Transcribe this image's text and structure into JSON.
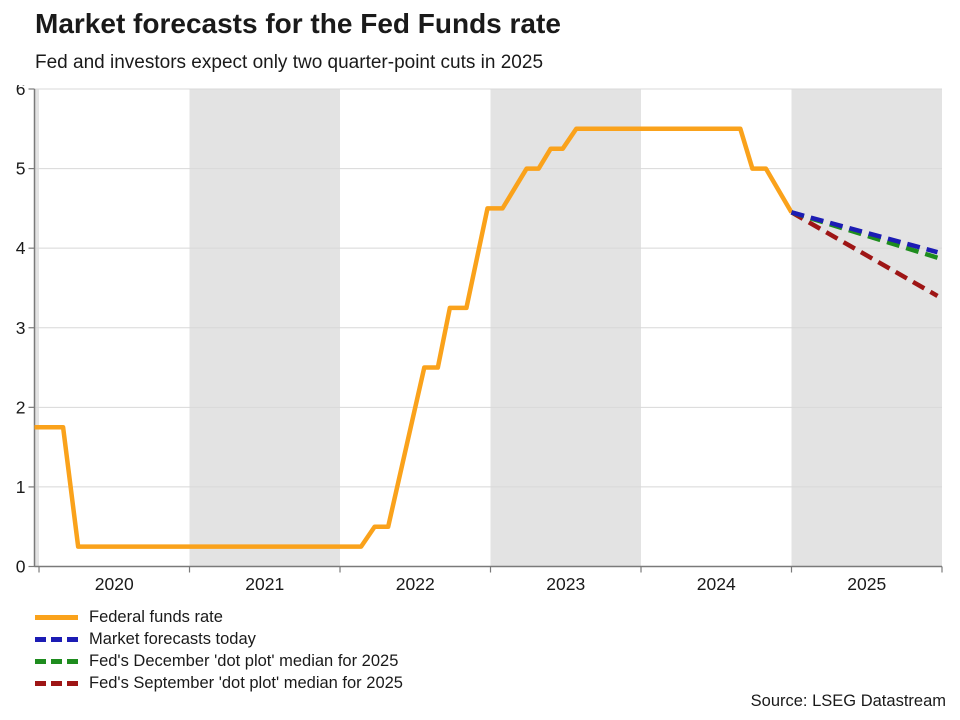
{
  "header": {
    "title": "Market forecasts for the Fed Funds rate",
    "subtitle": "Fed and investors expect only two quarter-point cuts in 2025"
  },
  "footer": {
    "source": "Source: LSEG Datastream"
  },
  "colors": {
    "band": "#e3e3e3",
    "gridline": "#d8d8d8",
    "axis": "#7a7a7a",
    "text": "#1a1a1a"
  },
  "chart_data": {
    "type": "line",
    "title": "Market forecasts for the Fed Funds rate",
    "subtitle": "Fed and investors expect only two quarter-point cuts in 2025",
    "xlabel": "",
    "ylabel": "",
    "xlim": [
      2019.97,
      2026
    ],
    "ylim": [
      0,
      6
    ],
    "y_ticks": [
      0,
      1,
      2,
      3,
      4,
      5,
      6
    ],
    "y_tick_labels": [
      "0",
      "1",
      "2",
      "3",
      "4",
      "5",
      "6"
    ],
    "x_year_ticks": [
      2020,
      2021,
      2022,
      2023,
      2024,
      2025,
      2026
    ],
    "x_tick_labels": [
      {
        "value": 2020.5,
        "label": "2020"
      },
      {
        "value": 2021.5,
        "label": "2021"
      },
      {
        "value": 2022.5,
        "label": "2022"
      },
      {
        "value": 2023.5,
        "label": "2023"
      },
      {
        "value": 2024.5,
        "label": "2024"
      },
      {
        "value": 2025.5,
        "label": "2025"
      }
    ],
    "grid": "horizontal",
    "legend_position": "bottom-left",
    "shaded_bands": [
      [
        2019.97,
        2020
      ],
      [
        2021,
        2022
      ],
      [
        2023,
        2024
      ],
      [
        2025,
        2026
      ]
    ],
    "series": [
      {
        "key": "federal-funds-rate",
        "name": "Federal funds rate",
        "color": "#faa21b",
        "dash": false,
        "points": [
          [
            2019.97,
            1.75
          ],
          [
            2020.16,
            1.75
          ],
          [
            2020.26,
            0.25
          ],
          [
            2022.14,
            0.25
          ],
          [
            2022.23,
            0.5
          ],
          [
            2022.32,
            0.5
          ],
          [
            2022.56,
            2.5
          ],
          [
            2022.65,
            2.5
          ],
          [
            2022.73,
            3.25
          ],
          [
            2022.84,
            3.25
          ],
          [
            2022.98,
            4.5
          ],
          [
            2023.08,
            4.5
          ],
          [
            2023.24,
            5.0
          ],
          [
            2023.32,
            5.0
          ],
          [
            2023.4,
            5.25
          ],
          [
            2023.48,
            5.25
          ],
          [
            2023.57,
            5.5
          ],
          [
            2024.66,
            5.5
          ],
          [
            2024.74,
            5.0
          ],
          [
            2024.83,
            5.0
          ],
          [
            2025.0,
            4.45
          ]
        ]
      },
      {
        "key": "fed-september-dot-plot",
        "name": "Fed's September 'dot plot' median for 2025",
        "color": "#9e1515",
        "dash": true,
        "points": [
          [
            2025.0,
            4.45
          ],
          [
            2025.97,
            3.4
          ]
        ]
      },
      {
        "key": "fed-december-dot-plot",
        "name": "Fed's December 'dot plot' median for 2025",
        "color": "#1e8c1e",
        "dash": true,
        "points": [
          [
            2025.0,
            4.45
          ],
          [
            2025.97,
            3.88
          ]
        ]
      },
      {
        "key": "market-forecasts-today",
        "name": "Market forecasts today",
        "color": "#1c1cb4",
        "dash": true,
        "points": [
          [
            2025.0,
            4.45
          ],
          [
            2025.97,
            3.95
          ]
        ]
      }
    ]
  },
  "legend": {
    "items": [
      {
        "key": "federal-funds-rate",
        "series": 0,
        "label": "Federal funds rate"
      },
      {
        "key": "market-forecasts-today",
        "series": 3,
        "label": "Market forecasts today"
      },
      {
        "key": "fed-december-dot-plot",
        "series": 2,
        "label": "Fed's December 'dot plot' median for 2025"
      },
      {
        "key": "fed-september-dot-plot",
        "series": 1,
        "label": "Fed's September 'dot plot' median for 2025"
      }
    ]
  }
}
